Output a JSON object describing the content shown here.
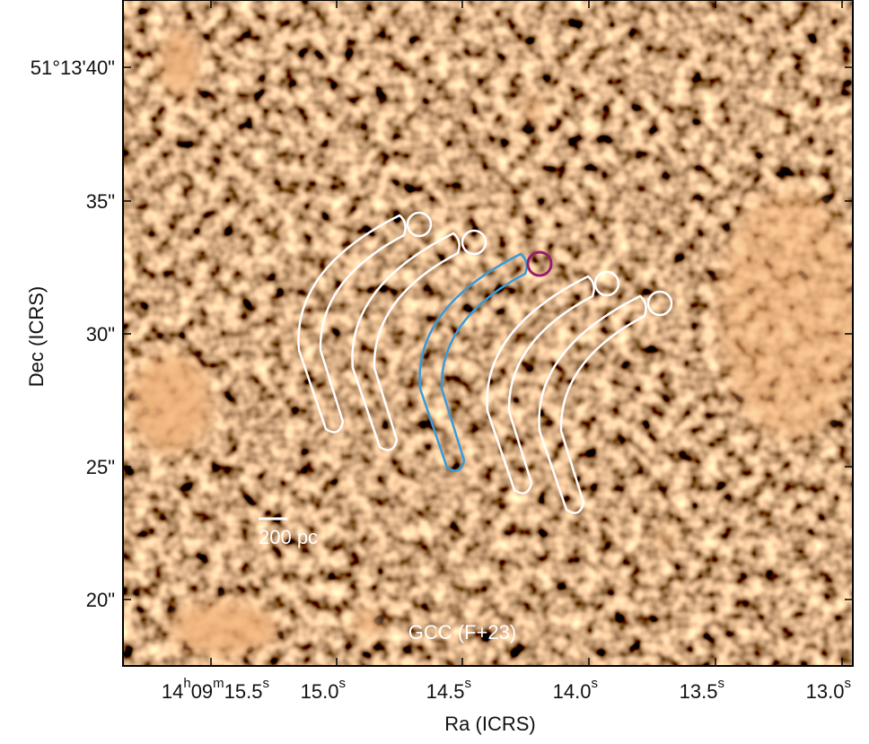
{
  "image": {
    "x_axis": {
      "label": "Ra (ICRS)",
      "ticks": [
        [
          {
            "text": "14"
          },
          {
            "sup": "h"
          },
          {
            "text": "09"
          },
          {
            "sup": "m"
          },
          {
            "text": "15.5"
          },
          {
            "sup": "s"
          }
        ],
        [
          {
            "text": "15.0"
          },
          {
            "sup": "s"
          }
        ],
        [
          {
            "text": "14.5"
          },
          {
            "sup": "s"
          }
        ],
        [
          {
            "text": "14.0"
          },
          {
            "sup": "s"
          }
        ],
        [
          {
            "text": "13.5"
          },
          {
            "sup": "s"
          }
        ],
        [
          {
            "text": "13.0"
          },
          {
            "sup": "s"
          }
        ]
      ]
    },
    "y_axis": {
      "label": "Dec (ICRS)",
      "ticks": [
        "51°13'40\"",
        "35\"",
        "30\"",
        "25\"",
        "20\""
      ]
    },
    "scale_bar": "200 pc",
    "annotation": "GCC (F+23)"
  }
}
